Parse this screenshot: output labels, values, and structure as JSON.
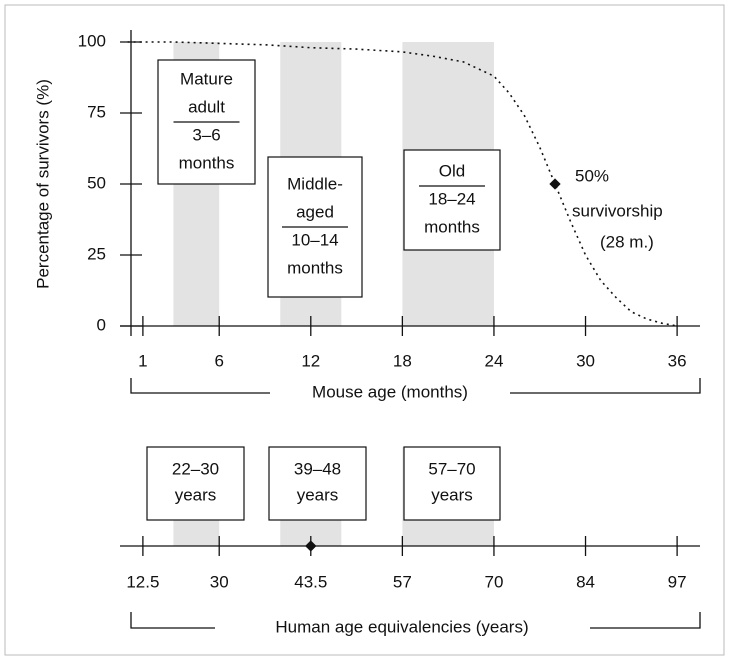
{
  "chart_data": {
    "type": "line",
    "ylabel": "Percentage  of survivors (%)",
    "xlabel": "Mouse age (months)",
    "xlim": [
      -0.5,
      37.5
    ],
    "ylim": [
      0,
      100
    ],
    "yticks": [
      0,
      25,
      50,
      75,
      100
    ],
    "xticks": [
      1,
      6,
      12,
      18,
      24,
      30,
      36
    ],
    "x": [
      0,
      3,
      6,
      9,
      12,
      15,
      18,
      20,
      22,
      24,
      25,
      26,
      27,
      28,
      29,
      30,
      31,
      32,
      33,
      34,
      35,
      36
    ],
    "values": [
      100,
      100,
      99.5,
      99,
      98,
      97.5,
      96.5,
      95,
      93,
      88,
      82,
      74,
      63,
      50,
      37,
      25,
      16,
      10,
      5,
      2.5,
      1,
      0
    ],
    "marker": {
      "x": 28,
      "y": 50,
      "labels": [
        "50%",
        "survivorship",
        "(28 m.)"
      ]
    },
    "stages": [
      {
        "start": 3,
        "end": 6,
        "top": [
          "Mature",
          "adult"
        ],
        "bottom": [
          "3–6",
          "months"
        ],
        "human": [
          "22–30",
          "years"
        ]
      },
      {
        "start": 10,
        "end": 14,
        "top": [
          "Middle-",
          "aged"
        ],
        "bottom": [
          "10–14",
          "months"
        ],
        "human": [
          "39–48",
          "years"
        ]
      },
      {
        "start": 18,
        "end": 24,
        "top": [
          "Old"
        ],
        "bottom": [
          "18–24",
          "months"
        ],
        "human": [
          "57–70",
          "years"
        ]
      }
    ],
    "human": {
      "label": "Human age equivalencies (years)",
      "ticks": [
        12.5,
        30,
        43.5,
        57,
        70,
        84,
        97
      ],
      "marker": 43.5
    }
  }
}
